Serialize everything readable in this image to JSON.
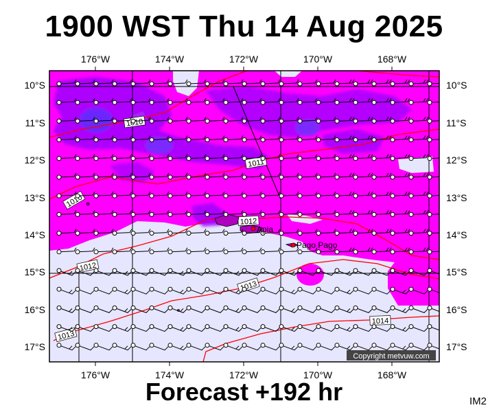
{
  "title": "1900 WST Thu 14 Aug 2025",
  "forecast_label": "Forecast +192 hr",
  "image_code": "IM2",
  "copyright": "Copyright metvuw.com",
  "colors": {
    "background_fill": "#e6e6ff",
    "rain_magenta": "#ff00ff",
    "rain_violet": "#a000ff",
    "rain_blue": "#7a2cff",
    "isobar": "#ff0000",
    "grid": "#000000"
  },
  "longitude_ticks": [
    "176°W",
    "174°W",
    "172°W",
    "170°W",
    "168°W"
  ],
  "latitude_ticks": [
    "10°S",
    "11°S",
    "12°S",
    "13°S",
    "14°S",
    "15°S",
    "16°S",
    "17°S"
  ],
  "isobars": [
    {
      "label": "1010",
      "pressure": 1010
    },
    {
      "label": "1011",
      "pressure": 1011
    },
    {
      "label": "1012",
      "pressure": 1012
    },
    {
      "label": "1012",
      "pressure": 1012
    },
    {
      "label": "1013",
      "pressure": 1013
    },
    {
      "label": "1013",
      "pressure": 1013
    },
    {
      "label": "1014",
      "pressure": 1014
    },
    {
      "label": "1010",
      "pressure": 1010
    }
  ],
  "places": [
    {
      "name": "Apia",
      "lon": -171.76,
      "lat": -13.83
    },
    {
      "name": "Pago Pago",
      "lon": -170.7,
      "lat": -14.28
    }
  ]
}
